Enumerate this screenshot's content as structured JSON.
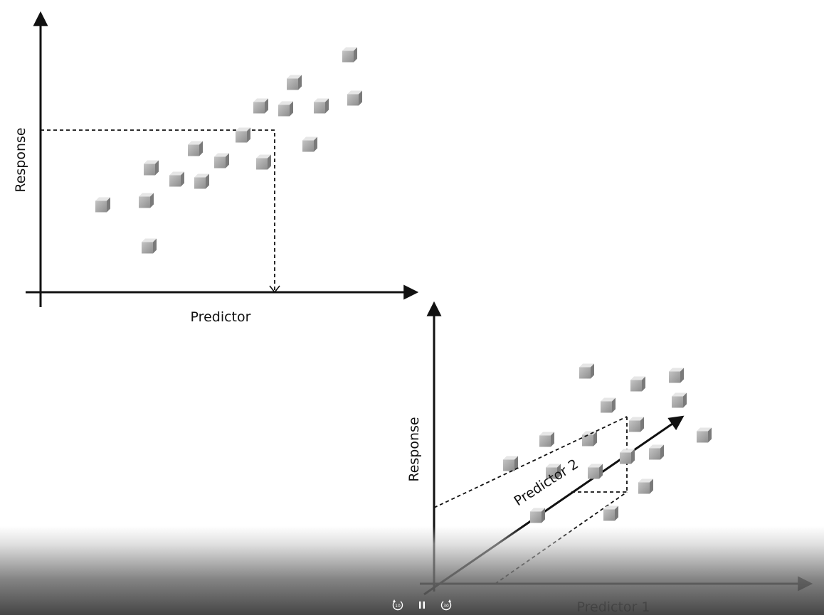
{
  "diagram_simple": {
    "x_label": "Predictor",
    "y_label": "Response"
  },
  "diagram_multiple": {
    "x_label": "Predictor 1",
    "y_label": "Response",
    "diagonal_label": "Predictor 2"
  },
  "player": {
    "rewind_label": "10",
    "play_pause_icon": "pause-icon",
    "forward_label": "30",
    "rewind_icon": "rewind-10-icon",
    "forward_icon": "forward-30-icon"
  },
  "colors": {
    "cube_top": "#e6e6e6",
    "cube_front": "#a6a6a6",
    "cube_side": "#7a7a7a",
    "axis": "#111111"
  }
}
